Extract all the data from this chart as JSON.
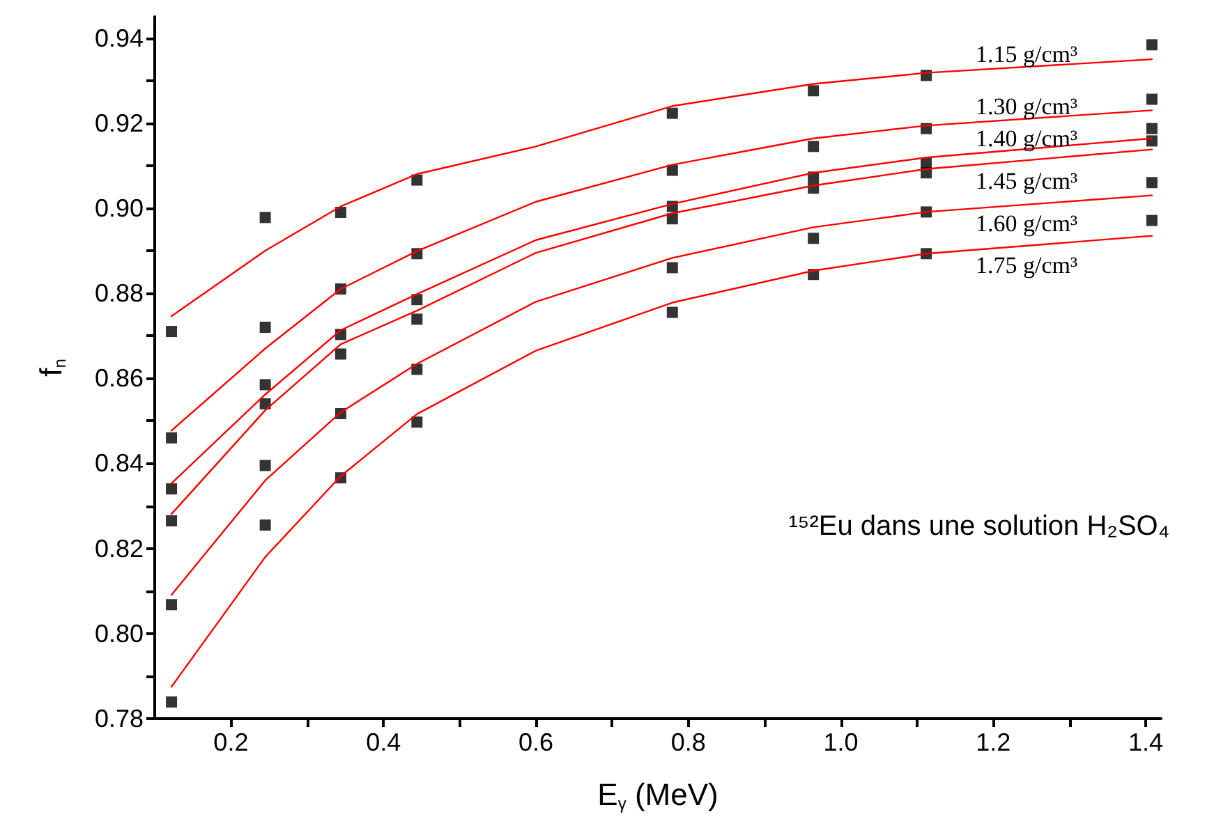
{
  "chart_data": {
    "type": "line",
    "xlabel": "E$_{γ}$ (MeV)",
    "ylabel": "f$_{n}$",
    "xlim": [
      0.1,
      1.42
    ],
    "ylim": [
      0.78,
      0.945
    ],
    "xticks": [
      0.2,
      0.4,
      0.6,
      0.8,
      {
        "value": 1.0,
        "label": "1.0"
      },
      1.2,
      1.4,
      {
        "value": 0.3,
        "label": null
      },
      {
        "value": 0.5,
        "label": null
      },
      {
        "value": 0.7,
        "label": null
      },
      {
        "value": 0.9,
        "label": null
      },
      {
        "value": 1.1,
        "label": null
      },
      {
        "value": 1.3,
        "label": null
      }
    ],
    "yticks": [
      0.78,
      {
        "value": 0.8,
        "label": "0.80"
      },
      0.82,
      0.84,
      0.86,
      0.88,
      {
        "value": 0.9,
        "label": "0.90"
      },
      0.92,
      0.94,
      {
        "value": 0.79,
        "label": null
      },
      {
        "value": 0.81,
        "label": null
      },
      {
        "value": 0.83,
        "label": null
      },
      {
        "value": 0.85,
        "label": null
      },
      {
        "value": 0.87,
        "label": null
      },
      {
        "value": 0.89,
        "label": null
      },
      {
        "value": 0.91,
        "label": null
      },
      {
        "value": 0.93,
        "label": null
      }
    ],
    "grid": false,
    "annotations": [
      "¹⁵²Eu dans une solution H₂SO₄"
    ],
    "series": [
      {
        "name": "1.15 g/cm³",
        "marker": "none",
        "line_style": "solid",
        "color": "#ff0000",
        "x": [
          0.122,
          0.245,
          0.344,
          0.444,
          0.6,
          0.779,
          0.964,
          1.112,
          1.408
        ],
        "values": [
          0.8746,
          0.89,
          0.9004,
          0.908,
          0.9145,
          0.924,
          0.9292,
          0.9318,
          0.935
        ]
      },
      {
        "name": "1.30 g/cm³",
        "marker": "none",
        "line_style": "solid",
        "color": "#ff0000",
        "x": [
          0.122,
          0.245,
          0.344,
          0.444,
          0.6,
          0.779,
          0.964,
          1.112,
          1.408
        ],
        "values": [
          0.8477,
          0.867,
          0.881,
          0.8899,
          0.9015,
          0.9102,
          0.9164,
          0.9194,
          0.923
        ]
      },
      {
        "name": "1.40 g/cm³",
        "marker": "none",
        "line_style": "solid",
        "color": "#ff0000",
        "x": [
          0.122,
          0.245,
          0.344,
          0.444,
          0.6,
          0.779,
          0.964,
          1.112,
          1.408
        ],
        "values": [
          0.8353,
          0.8562,
          0.8713,
          0.8798,
          0.8925,
          0.901,
          0.9083,
          0.9119,
          0.9164
        ]
      },
      {
        "name": "1.45 g/cm³",
        "marker": "none",
        "line_style": "solid",
        "color": "#ff0000",
        "x": [
          0.122,
          0.245,
          0.344,
          0.444,
          0.6,
          0.779,
          0.964,
          1.112,
          1.408
        ],
        "values": [
          0.8281,
          0.8525,
          0.868,
          0.8759,
          0.8895,
          0.8988,
          0.9053,
          0.9092,
          0.9138
        ]
      },
      {
        "name": "1.60 g/cm³",
        "marker": "none",
        "line_style": "solid",
        "color": "#ff0000",
        "x": [
          0.122,
          0.245,
          0.344,
          0.444,
          0.6,
          0.779,
          0.964,
          1.112,
          1.408
        ],
        "values": [
          0.8091,
          0.836,
          0.852,
          0.8634,
          0.878,
          0.8883,
          0.8955,
          0.8991,
          0.903
        ]
      },
      {
        "name": "1.75 g/cm³",
        "marker": "none",
        "line_style": "solid",
        "color": "#ff0000",
        "x": [
          0.122,
          0.245,
          0.344,
          0.444,
          0.6,
          0.779,
          0.964,
          1.112,
          1.408
        ],
        "values": [
          0.7875,
          0.818,
          0.837,
          0.8516,
          0.8665,
          0.8778,
          0.8853,
          0.8893,
          0.8935
        ]
      },
      {
        "type": "scatter",
        "marker": "square",
        "color": "#000000",
        "x": [
          0.122,
          0.245,
          0.344,
          0.444,
          0.779,
          0.964,
          1.112,
          1.408
        ],
        "values": [
          0.871,
          0.8978,
          0.899,
          0.9066,
          0.9223,
          0.9276,
          0.9312,
          0.9384
        ]
      },
      {
        "type": "scatter",
        "marker": "square",
        "color": "#000000",
        "x": [
          0.122,
          0.245,
          0.344,
          0.444,
          0.779,
          0.964,
          1.112,
          1.408
        ],
        "values": [
          0.846,
          0.872,
          0.881,
          0.8893,
          0.9089,
          0.9145,
          0.9187,
          0.9256
        ]
      },
      {
        "type": "scatter",
        "marker": "square",
        "color": "#000000",
        "x": [
          0.122,
          0.245,
          0.344,
          0.444,
          0.779,
          0.964,
          1.112,
          1.408
        ],
        "values": [
          0.834,
          0.8585,
          0.8703,
          0.8785,
          0.9004,
          0.9073,
          0.9106,
          0.9187
        ]
      },
      {
        "type": "scatter",
        "marker": "square",
        "color": "#000000",
        "x": [
          0.122,
          0.245,
          0.344,
          0.444,
          0.779,
          0.964,
          1.112,
          1.408
        ],
        "values": [
          0.8265,
          0.854,
          0.8657,
          0.8739,
          0.8975,
          0.9047,
          0.9083,
          0.9158
        ]
      },
      {
        "type": "scatter",
        "marker": "square",
        "color": "#000000",
        "x": [
          0.122,
          0.245,
          0.344,
          0.444,
          0.779,
          0.964,
          1.112,
          1.408
        ],
        "values": [
          0.8068,
          0.8395,
          0.8517,
          0.8621,
          0.886,
          0.8929,
          0.8991,
          0.906
        ]
      },
      {
        "type": "scatter",
        "marker": "square",
        "color": "#000000",
        "x": [
          0.122,
          0.245,
          0.344,
          0.444,
          0.779,
          0.964,
          1.112,
          1.408
        ],
        "values": [
          0.7839,
          0.8255,
          0.8366,
          0.8497,
          0.8755,
          0.8844,
          0.8893,
          0.8971
        ]
      }
    ]
  }
}
